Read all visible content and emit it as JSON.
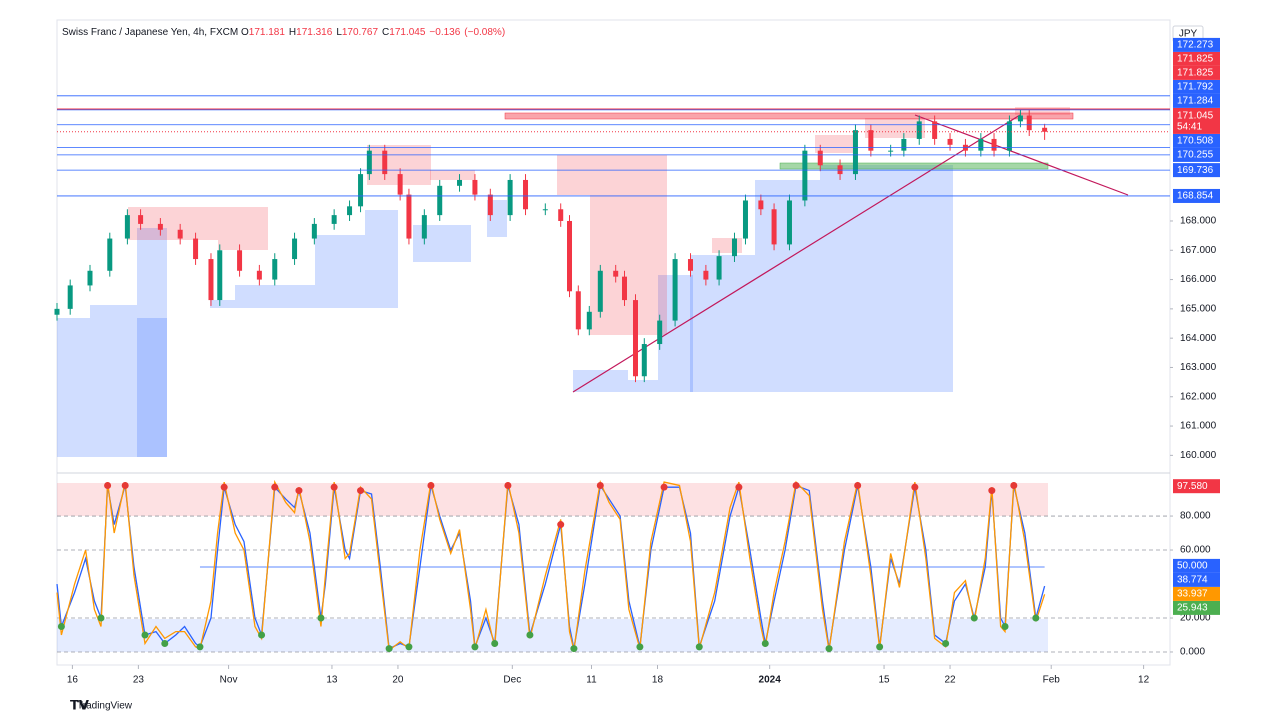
{
  "chart_data": [
    {
      "type": "candlestick",
      "title": "Swiss Franc / Japanese Yen, 4h, FXCM",
      "ohlc": [
        {
          "label": "O",
          "value": 171.181
        },
        {
          "label": "H",
          "value": 171.316
        },
        {
          "label": "L",
          "value": 170.767
        },
        {
          "label": "C",
          "value": 171.045
        }
      ],
      "change": {
        "value": -0.136,
        "label": "−0.136"
      },
      "change_pct": {
        "value": -0.08,
        "label": "(−0.08%)"
      },
      "currency": "JPY",
      "countdown": "54:41",
      "up_color": "#089981",
      "down_color": "#f23645",
      "x": [
        0,
        6,
        15,
        24,
        32,
        38,
        47,
        56,
        63,
        70,
        74,
        83,
        92,
        99,
        108,
        117,
        126,
        133,
        138,
        142,
        149,
        156,
        160,
        167,
        174,
        183,
        190,
        197,
        206,
        213,
        222,
        229,
        233,
        237,
        242,
        247,
        254,
        258,
        263,
        267,
        274,
        281,
        288,
        295,
        301,
        308,
        313,
        320,
        326,
        333,
        340,
        347,
        356,
        363,
        370,
        379,
        385,
        392,
        399,
        406,
        413,
        420,
        426,
        433,
        438,
        442,
        449
      ],
      "open": [
        164.8,
        165.0,
        165.8,
        166.3,
        167.4,
        168.2,
        167.9,
        167.7,
        167.4,
        166.7,
        165.3,
        167.0,
        166.3,
        166.0,
        166.7,
        167.4,
        167.9,
        168.2,
        168.5,
        169.6,
        170.4,
        169.6,
        168.9,
        167.4,
        168.2,
        169.2,
        169.4,
        168.9,
        168.2,
        169.4,
        168.4,
        168.4,
        168.0,
        165.6,
        164.3,
        164.9,
        166.3,
        166.1,
        165.3,
        162.7,
        163.8,
        164.6,
        166.7,
        166.3,
        166.0,
        166.8,
        167.4,
        168.7,
        168.4,
        167.2,
        168.7,
        170.4,
        169.9,
        169.6,
        171.1,
        170.4,
        170.4,
        170.8,
        171.4,
        170.8,
        170.6,
        170.4,
        170.8,
        170.4,
        171.4,
        171.6,
        171.181
      ],
      "high": [
        165.2,
        166.0,
        166.5,
        167.6,
        168.4,
        168.4,
        168.1,
        167.9,
        167.6,
        166.9,
        167.2,
        167.2,
        166.5,
        166.9,
        167.6,
        168.1,
        168.4,
        168.7,
        169.8,
        170.6,
        170.6,
        169.8,
        169.1,
        168.4,
        169.4,
        169.6,
        169.6,
        169.1,
        169.6,
        169.6,
        168.6,
        168.6,
        168.2,
        165.8,
        165.1,
        166.5,
        166.5,
        166.3,
        165.5,
        164.0,
        164.8,
        166.9,
        166.9,
        166.5,
        167.0,
        167.6,
        168.9,
        168.9,
        168.6,
        168.9,
        170.6,
        170.6,
        170.1,
        171.3,
        171.3,
        170.6,
        171.0,
        171.6,
        171.6,
        171.0,
        170.8,
        171.0,
        171.0,
        171.6,
        171.8,
        171.8,
        171.316
      ],
      "low": [
        164.6,
        164.8,
        165.6,
        166.1,
        167.2,
        167.7,
        167.5,
        167.2,
        166.5,
        165.1,
        165.1,
        166.1,
        165.8,
        165.8,
        166.5,
        167.2,
        167.7,
        168.0,
        168.3,
        169.4,
        169.4,
        168.7,
        167.2,
        167.2,
        168.0,
        169.0,
        168.7,
        168.0,
        168.0,
        168.2,
        168.2,
        167.8,
        165.4,
        164.1,
        164.1,
        164.7,
        165.9,
        165.1,
        162.5,
        162.5,
        163.6,
        164.4,
        166.1,
        165.8,
        165.8,
        166.6,
        167.2,
        168.2,
        167.0,
        167.0,
        168.5,
        169.7,
        169.4,
        169.4,
        170.2,
        170.2,
        170.2,
        170.6,
        170.6,
        170.4,
        170.2,
        170.2,
        170.2,
        170.2,
        171.2,
        170.9,
        170.767
      ],
      "close": [
        165.0,
        165.8,
        166.3,
        167.4,
        168.2,
        167.9,
        167.7,
        167.4,
        166.7,
        165.3,
        167.0,
        166.3,
        166.0,
        166.7,
        167.4,
        167.9,
        168.2,
        168.5,
        169.6,
        170.4,
        169.6,
        168.9,
        167.4,
        168.2,
        169.2,
        169.4,
        168.9,
        168.2,
        169.4,
        168.4,
        168.4,
        168.0,
        165.6,
        164.3,
        164.9,
        166.3,
        166.1,
        165.3,
        162.7,
        163.8,
        164.6,
        166.7,
        166.3,
        166.0,
        166.8,
        167.4,
        168.7,
        168.4,
        167.2,
        168.7,
        170.4,
        169.9,
        169.6,
        171.1,
        170.4,
        170.4,
        170.8,
        171.4,
        170.8,
        170.6,
        170.4,
        170.8,
        170.4,
        171.4,
        171.6,
        171.1,
        171.045
      ],
      "xlim": [
        0,
        506
      ],
      "xticks": [
        {
          "value": 7,
          "label": "16"
        },
        {
          "value": 37,
          "label": "23"
        },
        {
          "value": 78,
          "label": "Nov"
        },
        {
          "value": 125,
          "label": "13"
        },
        {
          "value": 155,
          "label": "20"
        },
        {
          "value": 207,
          "label": "Dec"
        },
        {
          "value": 243,
          "label": "11"
        },
        {
          "value": 273,
          "label": "18"
        },
        {
          "value": 324,
          "label": "2024"
        },
        {
          "value": 376,
          "label": "15"
        },
        {
          "value": 406,
          "label": "22"
        },
        {
          "value": 452,
          "label": "Feb"
        },
        {
          "value": 494,
          "label": "12"
        }
      ],
      "ylim": [
        159.5,
        174.86
      ],
      "yticks": [
        {
          "value": 160,
          "label": "160.000"
        },
        {
          "value": 161,
          "label": "161.000"
        },
        {
          "value": 162,
          "label": "162.000"
        },
        {
          "value": 163,
          "label": "163.000"
        },
        {
          "value": 164,
          "label": "164.000"
        },
        {
          "value": 165,
          "label": "165.000"
        },
        {
          "value": 166,
          "label": "166.000"
        },
        {
          "value": 167,
          "label": "167.000"
        },
        {
          "value": 168,
          "label": "168.000"
        }
      ],
      "price_labels": [
        {
          "value": 172.273,
          "color": "#2962ff"
        },
        {
          "value": 171.825,
          "color": "#f23645"
        },
        {
          "value": 171.825,
          "color": "#f23645"
        },
        {
          "value": 171.792,
          "color": "#2962ff"
        },
        {
          "value": 171.284,
          "color": "#2962ff"
        },
        {
          "value": 170.508,
          "color": "#2962ff"
        },
        {
          "value": 170.255,
          "color": "#2962ff"
        },
        {
          "value": 169.736,
          "color": "#2962ff"
        },
        {
          "value": 168.854,
          "color": "#2962ff"
        }
      ]
    },
    {
      "type": "line",
      "x": [
        0,
        2,
        8,
        13,
        17,
        20,
        23,
        26,
        31,
        35,
        40,
        45,
        49,
        54,
        58,
        63,
        65,
        70,
        73,
        76,
        81,
        85,
        90,
        93,
        99,
        104,
        108,
        110,
        115,
        120,
        122,
        126,
        131,
        133,
        138,
        143,
        147,
        151,
        156,
        160,
        165,
        170,
        174,
        179,
        183,
        188,
        190,
        195,
        199,
        205,
        210,
        215,
        222,
        229,
        233,
        235,
        240,
        247,
        251,
        256,
        260,
        265,
        270,
        276,
        283,
        288,
        292,
        299,
        306,
        310,
        315,
        320,
        322,
        326,
        331,
        336,
        342,
        348,
        351,
        358,
        364,
        370,
        374,
        379,
        383,
        390,
        395,
        399,
        404,
        408,
        413,
        417,
        422,
        425,
        429,
        431,
        435,
        440,
        445,
        449
      ],
      "series": [
        {
          "color": "#2962ff",
          "values": [
            40,
            15,
            35,
            55,
            30,
            20,
            98,
            75,
            98,
            50,
            10,
            12,
            5,
            10,
            15,
            5,
            3,
            20,
            60,
            97,
            75,
            65,
            20,
            10,
            97,
            90,
            85,
            95,
            70,
            20,
            40,
            97,
            60,
            55,
            95,
            93,
            50,
            2,
            5,
            3,
            50,
            98,
            80,
            60,
            70,
            30,
            3,
            20,
            5,
            98,
            75,
            10,
            40,
            75,
            15,
            2,
            40,
            98,
            90,
            80,
            30,
            3,
            60,
            97,
            97,
            70,
            3,
            30,
            80,
            97,
            60,
            20,
            5,
            30,
            60,
            98,
            95,
            30,
            2,
            60,
            98,
            50,
            3,
            55,
            40,
            97,
            60,
            10,
            5,
            30,
            40,
            20,
            50,
            95,
            20,
            15,
            98,
            70,
            20,
            38.774
          ]
        },
        {
          "color": "#ff9800",
          "values": [
            35,
            10,
            40,
            60,
            25,
            15,
            100,
            70,
            100,
            45,
            5,
            15,
            8,
            12,
            12,
            3,
            2,
            30,
            70,
            100,
            70,
            60,
            15,
            8,
            100,
            88,
            82,
            97,
            65,
            15,
            45,
            100,
            55,
            58,
            97,
            90,
            45,
            1,
            6,
            2,
            60,
            100,
            78,
            58,
            72,
            25,
            2,
            25,
            3,
            100,
            70,
            8,
            45,
            78,
            12,
            1,
            48,
            100,
            88,
            78,
            25,
            2,
            65,
            100,
            98,
            65,
            2,
            35,
            85,
            100,
            55,
            15,
            3,
            35,
            65,
            100,
            92,
            25,
            1,
            65,
            100,
            45,
            2,
            58,
            38,
            100,
            55,
            8,
            3,
            35,
            42,
            18,
            55,
            97,
            15,
            12,
            100,
            65,
            18,
            33.937
          ]
        }
      ],
      "ylim": [
        -5.9,
        102.4
      ],
      "yticks": [
        {
          "value": 0,
          "label": "0.000"
        },
        {
          "value": 20,
          "label": "20.000"
        },
        {
          "value": 60,
          "label": "60.000"
        },
        {
          "value": 80,
          "label": "80.000"
        }
      ],
      "levels": [
        {
          "value": 50,
          "label": "50.000",
          "color": "#2962ff"
        }
      ],
      "markers": [
        {
          "value": 97.58,
          "label": "97.580",
          "color": "#f23645"
        },
        {
          "value": 25.943,
          "label": "25.943",
          "color": "#4caf50"
        }
      ]
    }
  ],
  "footer": {
    "brand": "TradingView"
  }
}
